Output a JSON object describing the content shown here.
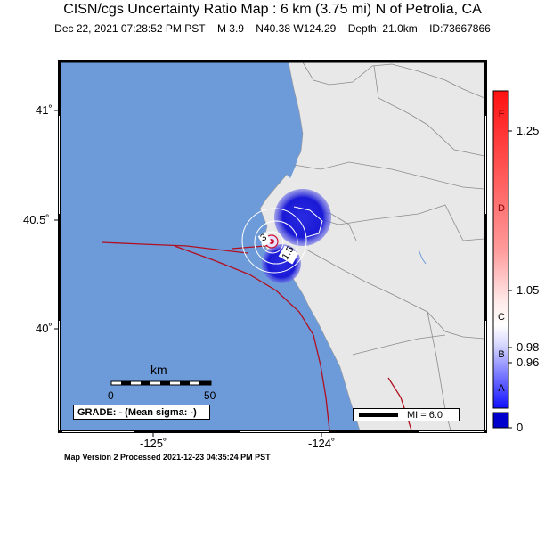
{
  "header": {
    "title": "CISN/cgs Uncertainty Ratio Map : 6 km (3.75 mi) N of Petrolia, CA",
    "datetime": "Dec 22, 2021 07:28:52 PM PST",
    "magnitude": "M 3.9",
    "location": "N40.38 W124.29",
    "depth": "Depth: 21.0km",
    "event_id": "ID:73667866"
  },
  "axes": {
    "lat_labels": [
      "41˚",
      "40.5˚",
      "40˚"
    ],
    "lon_labels": [
      "-125˚",
      "-124˚"
    ]
  },
  "contours": {
    "label_3": "3",
    "label_1_5": "1.5"
  },
  "scale_bar": {
    "unit": "km",
    "start": "0",
    "end": "50"
  },
  "grade_box": {
    "text": "GRADE: - (Mean sigma: -)"
  },
  "mi_legend": {
    "text": "MI = 6.0"
  },
  "footer": {
    "version": "Map Version 2 Processed 2021-12-23 04:35:24 PM PST"
  },
  "colorbar": {
    "grades": [
      "F",
      "D",
      "C",
      "B",
      "A"
    ],
    "values": [
      "1.25",
      "1.05",
      "0.98",
      "0.96",
      "0"
    ],
    "colors": {
      "high": "#ff0000",
      "mid": "#ffffff",
      "low": "#0000ff",
      "bottom": "#0000cc"
    }
  },
  "colors": {
    "ocean": "#6d9ad9",
    "land": "#e8e8e8",
    "fault": "#b01020",
    "border": "#8c8c8c",
    "uncertainty_blue": "#1a1ad6"
  }
}
